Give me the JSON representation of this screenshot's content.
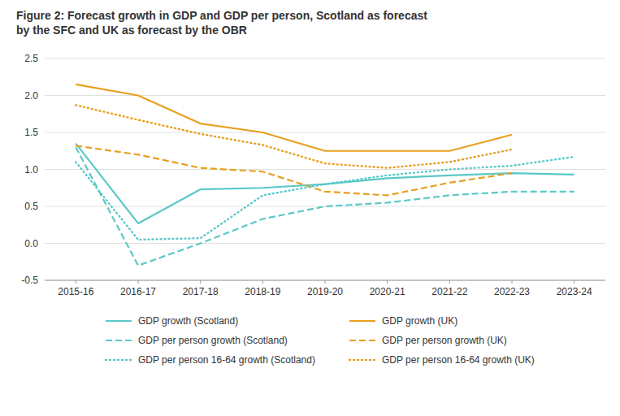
{
  "chart_data": {
    "type": "line",
    "title": "Figure 2: Forecast growth in GDP and GDP per person, Scotland as forecast\nby the SFC and UK as forecast by the OBR",
    "categories": [
      "2015-16",
      "2016-17",
      "2017-18",
      "2018-19",
      "2019-20",
      "2020-21",
      "2021-22",
      "2022-23",
      "2023-24"
    ],
    "series": [
      {
        "name": "GDP growth (Scotland)",
        "color": "#5BC8C8",
        "line_style": "solid",
        "values": [
          1.35,
          0.27,
          0.73,
          0.75,
          0.8,
          0.88,
          0.92,
          0.95,
          0.93
        ]
      },
      {
        "name": "GDP growth (UK)",
        "color": "#E8A020",
        "line_style": "solid",
        "values": [
          2.15,
          2.0,
          1.62,
          1.5,
          1.25,
          1.25,
          1.25,
          1.47,
          null
        ]
      },
      {
        "name": "GDP per person growth (Scotland)",
        "color": "#5BC8C8",
        "line_style": "dashed",
        "values": [
          1.3,
          -0.3,
          0.0,
          0.33,
          0.5,
          0.55,
          0.65,
          0.7,
          0.7
        ]
      },
      {
        "name": "GDP per person growth (UK)",
        "color": "#E8A020",
        "line_style": "dashed",
        "values": [
          1.32,
          1.2,
          1.02,
          0.97,
          0.7,
          0.65,
          0.82,
          0.95,
          null
        ]
      },
      {
        "name": "GDP per person 16-64 growth (Scotland)",
        "color": "#5BC8C8",
        "line_style": "dotted",
        "values": [
          1.1,
          0.05,
          0.07,
          0.65,
          0.8,
          0.92,
          1.0,
          1.05,
          1.17
        ]
      },
      {
        "name": "GDP per person 16-64 growth (UK)",
        "color": "#E8A020",
        "line_style": "dotted",
        "values": [
          1.87,
          1.67,
          1.48,
          1.33,
          1.08,
          1.02,
          1.1,
          1.27,
          null
        ]
      }
    ],
    "ylim": [
      -0.5,
      2.5
    ],
    "yticks": [
      -0.5,
      {
        "value": 0.0,
        "label": "0.0"
      },
      0.5,
      {
        "value": 1.0,
        "label": "1.0"
      },
      1.5,
      {
        "value": 2.0,
        "label": "2.0"
      },
      2.5
    ],
    "grid": true,
    "legend": "bottom"
  }
}
